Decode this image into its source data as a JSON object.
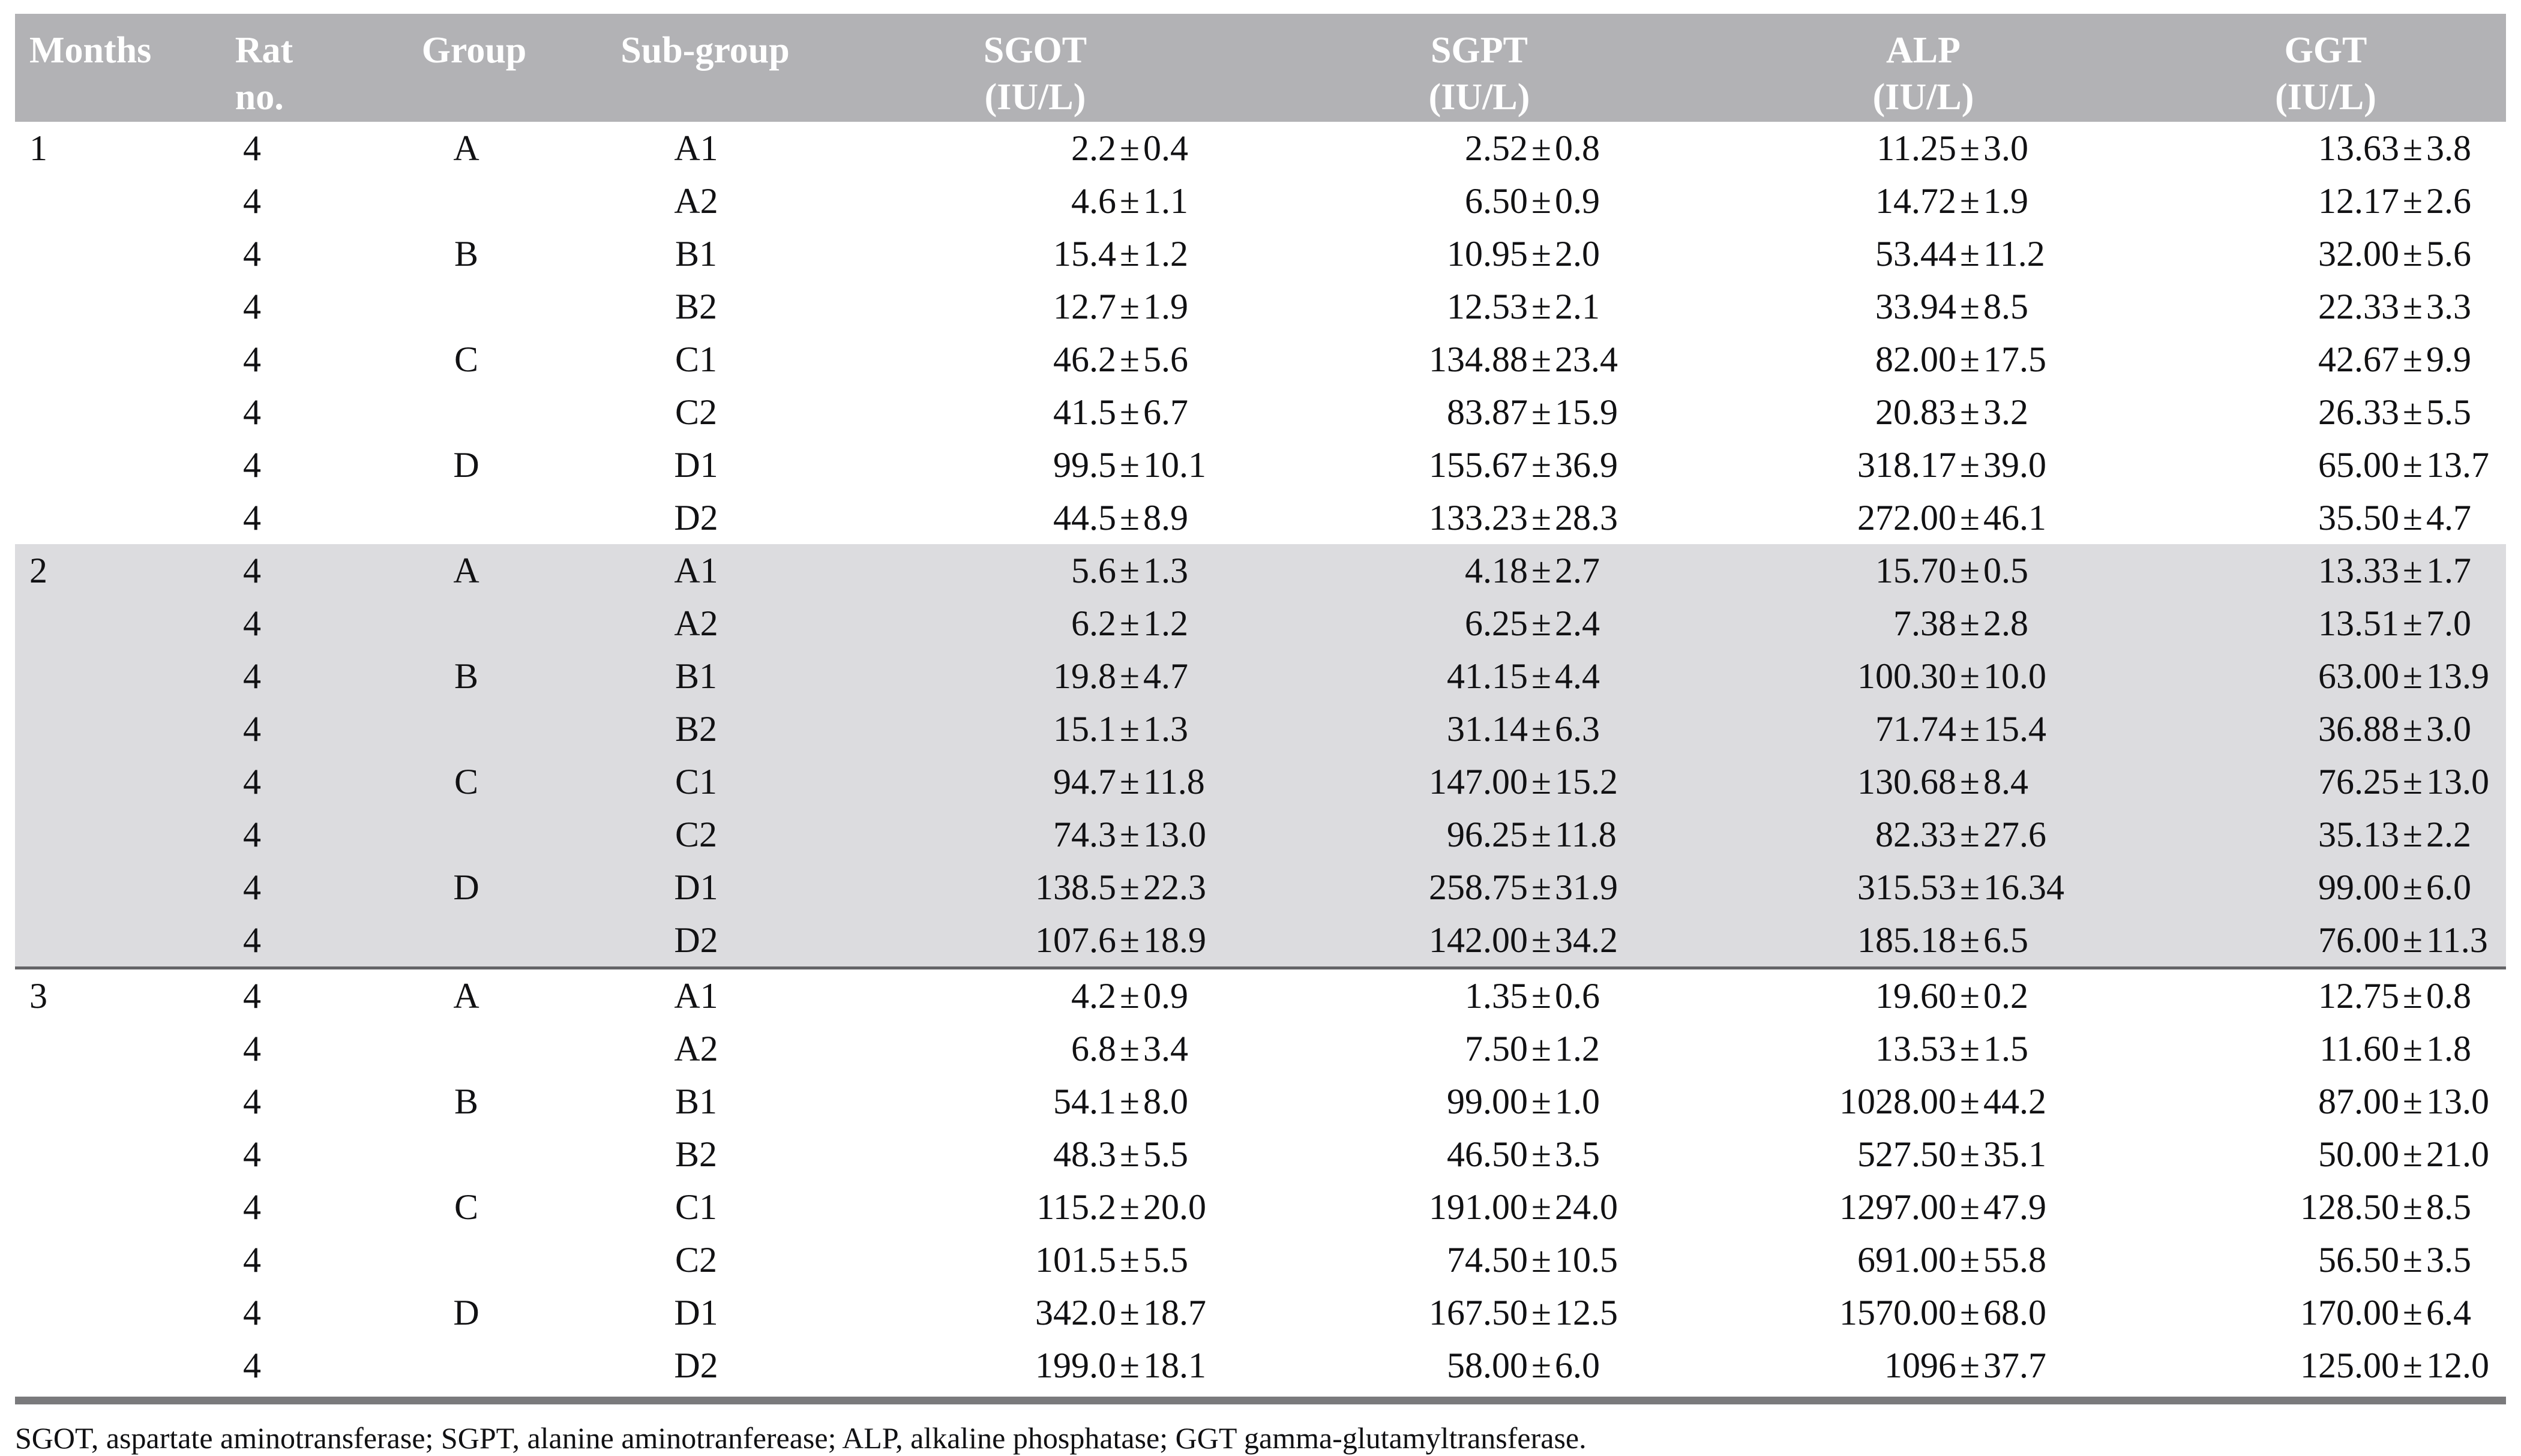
{
  "table": {
    "pm_symbol": "±",
    "columns": [
      {
        "id": "months",
        "header_lines": [
          "Months"
        ]
      },
      {
        "id": "rat-no",
        "header_lines": [
          "Rat",
          "no."
        ]
      },
      {
        "id": "group",
        "header_lines": [
          "Group"
        ]
      },
      {
        "id": "subgroup",
        "header_lines": [
          "Sub-group"
        ]
      },
      {
        "id": "sgot",
        "header_lines": [
          "SGOT",
          "(IU/L)"
        ]
      },
      {
        "id": "sgpt",
        "header_lines": [
          "SGPT",
          "(IU/L)"
        ]
      },
      {
        "id": "alp",
        "header_lines": [
          "ALP",
          "(IU/L)"
        ]
      },
      {
        "id": "ggt",
        "header_lines": [
          "GGT",
          "(IU/L)"
        ]
      }
    ],
    "blocks": [
      {
        "month": "1",
        "shaded": false,
        "rows": [
          {
            "rat": "4",
            "group": "A",
            "subgroup": "A1",
            "sgot": [
              "2.2",
              "0.4"
            ],
            "sgpt": [
              "2.52",
              "0.8"
            ],
            "alp": [
              "11.25",
              "3.0"
            ],
            "ggt": [
              "13.63",
              "3.8"
            ]
          },
          {
            "rat": "4",
            "group": "",
            "subgroup": "A2",
            "sgot": [
              "4.6",
              "1.1"
            ],
            "sgpt": [
              "6.50",
              "0.9"
            ],
            "alp": [
              "14.72",
              "1.9"
            ],
            "ggt": [
              "12.17",
              "2.6"
            ]
          },
          {
            "rat": "4",
            "group": "B",
            "subgroup": "B1",
            "sgot": [
              "15.4",
              "1.2"
            ],
            "sgpt": [
              "10.95",
              "2.0"
            ],
            "alp": [
              "53.44",
              "11.2"
            ],
            "ggt": [
              "32.00",
              "5.6"
            ]
          },
          {
            "rat": "4",
            "group": "",
            "subgroup": "B2",
            "sgot": [
              "12.7",
              "1.9"
            ],
            "sgpt": [
              "12.53",
              "2.1"
            ],
            "alp": [
              "33.94",
              "8.5"
            ],
            "ggt": [
              "22.33",
              "3.3"
            ]
          },
          {
            "rat": "4",
            "group": "C",
            "subgroup": "C1",
            "sgot": [
              "46.2",
              "5.6"
            ],
            "sgpt": [
              "134.88",
              "23.4"
            ],
            "alp": [
              "82.00",
              "17.5"
            ],
            "ggt": [
              "42.67",
              "9.9"
            ]
          },
          {
            "rat": "4",
            "group": "",
            "subgroup": "C2",
            "sgot": [
              "41.5",
              "6.7"
            ],
            "sgpt": [
              "83.87",
              "15.9"
            ],
            "alp": [
              "20.83",
              "3.2"
            ],
            "ggt": [
              "26.33",
              "5.5"
            ]
          },
          {
            "rat": "4",
            "group": "D",
            "subgroup": "D1",
            "sgot": [
              "99.5",
              "10.1"
            ],
            "sgpt": [
              "155.67",
              "36.9"
            ],
            "alp": [
              "318.17",
              "39.0"
            ],
            "ggt": [
              "65.00",
              "13.7"
            ]
          },
          {
            "rat": "4",
            "group": "",
            "subgroup": "D2",
            "sgot": [
              "44.5",
              "8.9"
            ],
            "sgpt": [
              "133.23",
              "28.3"
            ],
            "alp": [
              "272.00",
              "46.1"
            ],
            "ggt": [
              "35.50",
              "4.7"
            ]
          }
        ]
      },
      {
        "month": "2",
        "shaded": true,
        "rows": [
          {
            "rat": "4",
            "group": "A",
            "subgroup": "A1",
            "sgot": [
              "5.6",
              "1.3"
            ],
            "sgpt": [
              "4.18",
              "2.7"
            ],
            "alp": [
              "15.70",
              "0.5"
            ],
            "ggt": [
              "13.33",
              "1.7"
            ]
          },
          {
            "rat": "4",
            "group": "",
            "subgroup": "A2",
            "sgot": [
              "6.2",
              "1.2"
            ],
            "sgpt": [
              "6.25",
              "2.4"
            ],
            "alp": [
              "7.38",
              "2.8"
            ],
            "ggt": [
              "13.51",
              "7.0"
            ]
          },
          {
            "rat": "4",
            "group": "B",
            "subgroup": "B1",
            "sgot": [
              "19.8",
              "4.7"
            ],
            "sgpt": [
              "41.15",
              "4.4"
            ],
            "alp": [
              "100.30",
              "10.0"
            ],
            "ggt": [
              "63.00",
              "13.9"
            ]
          },
          {
            "rat": "4",
            "group": "",
            "subgroup": "B2",
            "sgot": [
              "15.1",
              "1.3"
            ],
            "sgpt": [
              "31.14",
              "6.3"
            ],
            "alp": [
              "71.74",
              "15.4"
            ],
            "ggt": [
              "36.88",
              "3.0"
            ]
          },
          {
            "rat": "4",
            "group": "C",
            "subgroup": "C1",
            "sgot": [
              "94.7",
              "11.8"
            ],
            "sgpt": [
              "147.00",
              "15.2"
            ],
            "alp": [
              "130.68",
              "8.4"
            ],
            "ggt": [
              "76.25",
              "13.0"
            ]
          },
          {
            "rat": "4",
            "group": "",
            "subgroup": "C2",
            "sgot": [
              "74.3",
              "13.0"
            ],
            "sgpt": [
              "96.25",
              "11.8"
            ],
            "alp": [
              "82.33",
              "27.6"
            ],
            "ggt": [
              "35.13",
              "2.2"
            ]
          },
          {
            "rat": "4",
            "group": "D",
            "subgroup": "D1",
            "sgot": [
              "138.5",
              "22.3"
            ],
            "sgpt": [
              "258.75",
              "31.9"
            ],
            "alp": [
              "315.53",
              "16.34"
            ],
            "ggt": [
              "99.00",
              "6.0"
            ]
          },
          {
            "rat": "4",
            "group": "",
            "subgroup": "D2",
            "sgot": [
              "107.6",
              "18.9"
            ],
            "sgpt": [
              "142.00",
              "34.2"
            ],
            "alp": [
              "185.18",
              "6.5"
            ],
            "ggt": [
              "76.00",
              "11.3"
            ]
          }
        ]
      },
      {
        "month": "3",
        "shaded": false,
        "rows": [
          {
            "rat": "4",
            "group": "A",
            "subgroup": "A1",
            "sgot": [
              "4.2",
              "0.9"
            ],
            "sgpt": [
              "1.35",
              "0.6"
            ],
            "alp": [
              "19.60",
              "0.2"
            ],
            "ggt": [
              "12.75",
              "0.8"
            ]
          },
          {
            "rat": "4",
            "group": "",
            "subgroup": "A2",
            "sgot": [
              "6.8",
              "3.4"
            ],
            "sgpt": [
              "7.50",
              "1.2"
            ],
            "alp": [
              "13.53",
              "1.5"
            ],
            "ggt": [
              "11.60",
              "1.8"
            ]
          },
          {
            "rat": "4",
            "group": "B",
            "subgroup": "B1",
            "sgot": [
              "54.1",
              "8.0"
            ],
            "sgpt": [
              "99.00",
              "1.0"
            ],
            "alp": [
              "1028.00",
              "44.2"
            ],
            "ggt": [
              "87.00",
              "13.0"
            ]
          },
          {
            "rat": "4",
            "group": "",
            "subgroup": "B2",
            "sgot": [
              "48.3",
              "5.5"
            ],
            "sgpt": [
              "46.50",
              "3.5"
            ],
            "alp": [
              "527.50",
              "35.1"
            ],
            "ggt": [
              "50.00",
              "21.0"
            ]
          },
          {
            "rat": "4",
            "group": "C",
            "subgroup": "C1",
            "sgot": [
              "115.2",
              "20.0"
            ],
            "sgpt": [
              "191.00",
              "24.0"
            ],
            "alp": [
              "1297.00",
              "47.9"
            ],
            "ggt": [
              "128.50",
              "8.5"
            ]
          },
          {
            "rat": "4",
            "group": "",
            "subgroup": "C2",
            "sgot": [
              "101.5",
              "5.5"
            ],
            "sgpt": [
              "74.50",
              "10.5"
            ],
            "alp": [
              "691.00",
              "55.8"
            ],
            "ggt": [
              "56.50",
              "3.5"
            ]
          },
          {
            "rat": "4",
            "group": "D",
            "subgroup": "D1",
            "sgot": [
              "342.0",
              "18.7"
            ],
            "sgpt": [
              "167.50",
              "12.5"
            ],
            "alp": [
              "1570.00",
              "68.0"
            ],
            "ggt": [
              "170.00",
              "6.4"
            ]
          },
          {
            "rat": "4",
            "group": "",
            "subgroup": "D2",
            "sgot": [
              "199.0",
              "18.1"
            ],
            "sgpt": [
              "58.00",
              "6.0"
            ],
            "alp": [
              "1096",
              "37.7"
            ],
            "ggt": [
              "125.00",
              "12.0"
            ]
          }
        ]
      }
    ],
    "footnote": "SGOT, aspartate aminotransferase; SGPT, alanine aminotranferease; ALP, alkaline phosphatase; GGT gamma-glutamyltransferase.",
    "colors": {
      "header_bg": "#b2b2b5",
      "header_text": "#ffffff",
      "shaded_band_bg": "#dcdcdf",
      "mid_rule": "#646467",
      "bottom_rule": "#7a7a7c",
      "body_text": "#111113"
    }
  }
}
